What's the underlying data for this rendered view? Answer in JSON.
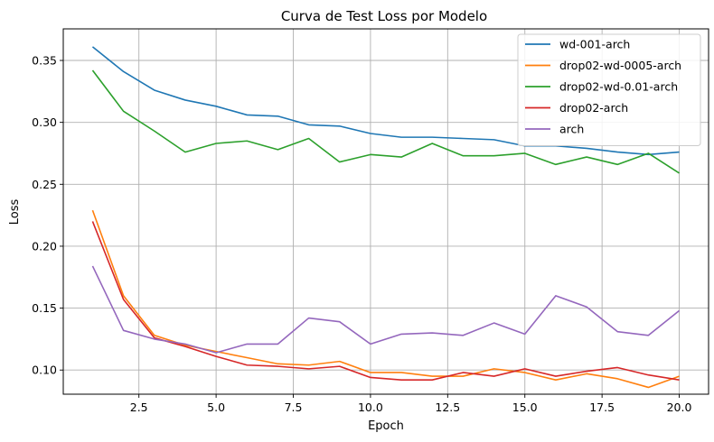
{
  "chart_data": {
    "type": "line",
    "title": "Curva de Test Loss por Modelo",
    "xlabel": "Epoch",
    "ylabel": "Loss",
    "xlim": [
      0.05,
      20.95
    ],
    "ylim": [
      0.0805,
      0.3755
    ],
    "xticks": [
      2.5,
      5.0,
      7.5,
      10.0,
      12.5,
      15.0,
      17.5,
      20.0
    ],
    "xtick_labels": [
      "2.5",
      "5.0",
      "7.5",
      "10.0",
      "12.5",
      "15.0",
      "17.5",
      "20.0"
    ],
    "yticks": [
      0.1,
      0.15,
      0.2,
      0.25,
      0.3,
      0.35
    ],
    "ytick_labels": [
      "0.10",
      "0.15",
      "0.20",
      "0.25",
      "0.30",
      "0.35"
    ],
    "grid": true,
    "legend_position": "top-right",
    "x": [
      1,
      2,
      3,
      4,
      5,
      6,
      7,
      8,
      9,
      10,
      11,
      12,
      13,
      14,
      15,
      16,
      17,
      18,
      19,
      20
    ],
    "series": [
      {
        "name": "wd-001-arch",
        "color": "#1f77b4",
        "values": [
          0.361,
          0.341,
          0.326,
          0.318,
          0.313,
          0.306,
          0.305,
          0.298,
          0.297,
          0.291,
          0.288,
          0.288,
          0.287,
          0.286,
          0.281,
          0.281,
          0.279,
          0.276,
          0.274,
          0.276
        ]
      },
      {
        "name": "drop02-wd-0005-arch",
        "color": "#ff7f0e",
        "values": [
          0.229,
          0.16,
          0.128,
          0.12,
          0.115,
          0.11,
          0.105,
          0.104,
          0.107,
          0.098,
          0.098,
          0.095,
          0.095,
          0.101,
          0.098,
          0.092,
          0.097,
          0.093,
          0.086,
          0.095
        ]
      },
      {
        "name": "drop02-wd-0.01-arch",
        "color": "#2ca02c",
        "values": [
          0.342,
          0.309,
          0.293,
          0.276,
          0.283,
          0.285,
          0.278,
          0.287,
          0.268,
          0.274,
          0.272,
          0.283,
          0.273,
          0.273,
          0.275,
          0.266,
          0.272,
          0.266,
          0.275,
          0.259
        ]
      },
      {
        "name": "drop02-arch",
        "color": "#d62728",
        "values": [
          0.22,
          0.157,
          0.126,
          0.119,
          0.111,
          0.104,
          0.103,
          0.101,
          0.103,
          0.094,
          0.092,
          0.092,
          0.098,
          0.095,
          0.101,
          0.095,
          0.099,
          0.102,
          0.096,
          0.092
        ]
      },
      {
        "name": "arch",
        "color": "#9467bd",
        "values": [
          0.184,
          0.132,
          0.125,
          0.121,
          0.114,
          0.121,
          0.121,
          0.142,
          0.139,
          0.121,
          0.129,
          0.13,
          0.128,
          0.138,
          0.129,
          0.16,
          0.151,
          0.131,
          0.128,
          0.148
        ]
      }
    ]
  }
}
